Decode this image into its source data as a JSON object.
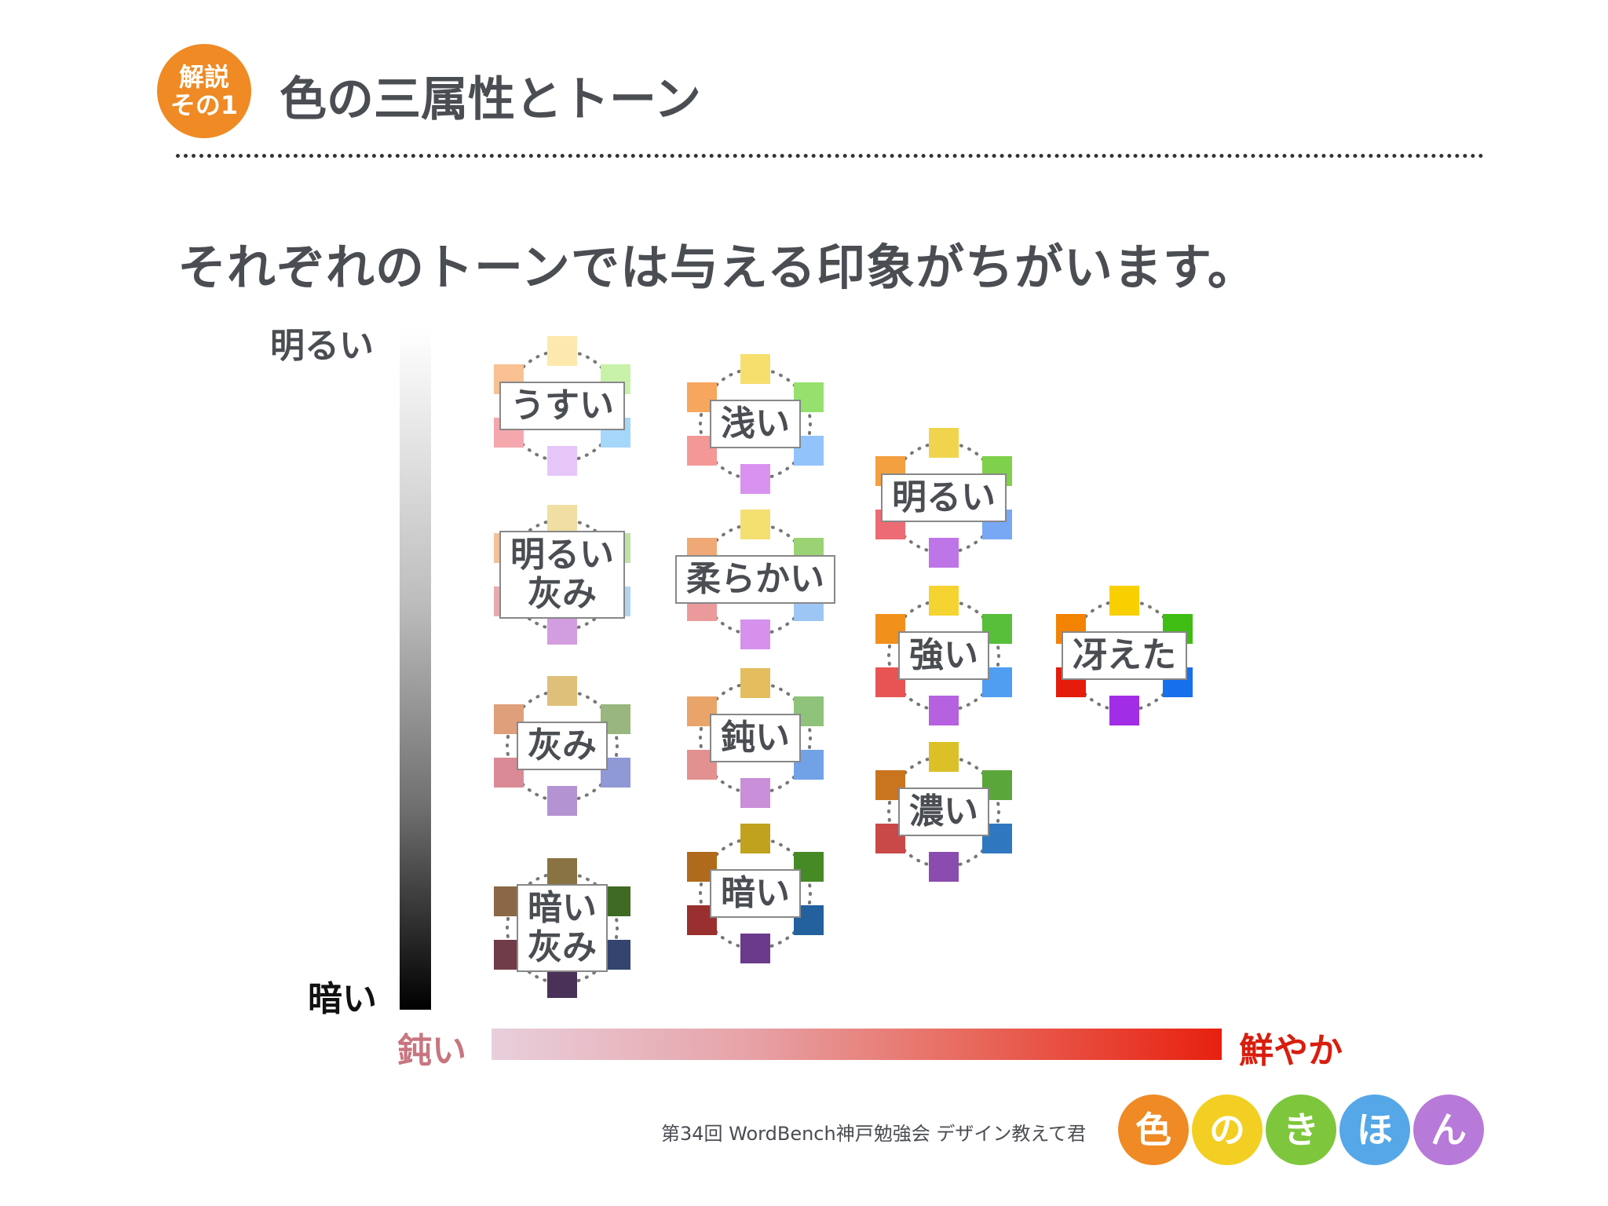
{
  "header": {
    "badge_line1": "解説",
    "badge_line2": "その1",
    "title": "色の三属性とトーン"
  },
  "subtitle": "それぞれのトーンでは与える印象がちがいます。",
  "axis": {
    "top": "明るい",
    "bottom": "暗い",
    "left": "鈍い",
    "right": "鮮やか"
  },
  "tones": [
    {
      "label": "うすい",
      "colors": [
        "#fde9ad",
        "#c8f2a9",
        "#a5d7fb",
        "#e6c6f8",
        "#f5a7ae",
        "#f9c192"
      ]
    },
    {
      "label": "浅い",
      "colors": [
        "#f7df6e",
        "#96e06e",
        "#92c4fb",
        "#d992f0",
        "#f49797",
        "#f7a65e"
      ]
    },
    {
      "label": "明るい",
      "colors": [
        "#f1d44d",
        "#7fd04a",
        "#78a8f4",
        "#be75e8",
        "#ec6b74",
        "#f3a040"
      ]
    },
    {
      "label": "明るい\n灰み",
      "colors": [
        "#f0dea3",
        "#bde4a6",
        "#b3d4f0",
        "#d39ee0",
        "#e7aaae",
        "#f1c199"
      ]
    },
    {
      "label": "柔らかい",
      "colors": [
        "#f3e071",
        "#9bd374",
        "#9ec6f4",
        "#d591ec",
        "#eb9a9c",
        "#efa976"
      ]
    },
    {
      "label": "強い",
      "colors": [
        "#f5d330",
        "#57bf3a",
        "#4f9ef2",
        "#b661e0",
        "#e85454",
        "#f2901c"
      ]
    },
    {
      "label": "冴えた",
      "colors": [
        "#f8d000",
        "#3fbd12",
        "#1670ec",
        "#a22de6",
        "#e51b0c",
        "#f28303"
      ]
    },
    {
      "label": "灰み",
      "colors": [
        "#dfc07a",
        "#98b67e",
        "#8f99d6",
        "#b493d3",
        "#d98a96",
        "#df9f7a"
      ]
    },
    {
      "label": "鈍い",
      "colors": [
        "#e3bd5e",
        "#8fc27a",
        "#72a2e6",
        "#c98fd8",
        "#e39090",
        "#e9a46a"
      ]
    },
    {
      "label": "濃い",
      "colors": [
        "#dbc028",
        "#5ba63b",
        "#2f78c0",
        "#8a4cae",
        "#c94848",
        "#c9741f"
      ]
    },
    {
      "label": "暗い\n灰み",
      "colors": [
        "#8a7343",
        "#3e6a24",
        "#34446f",
        "#4a3158",
        "#703c48",
        "#8b6745"
      ]
    },
    {
      "label": "暗い",
      "colors": [
        "#c0a21e",
        "#468a26",
        "#22609e",
        "#6a3a8c",
        "#9a2f2f",
        "#b06a1c"
      ]
    }
  ],
  "footer": {
    "text": "第34回 WordBench神戸勉強会 デザイン教えて君",
    "kihon": [
      "色",
      "の",
      "き",
      "ほ",
      "ん"
    ],
    "kihon_colors": [
      "#ef8a24",
      "#f2cf22",
      "#7ec63c",
      "#55a7e8",
      "#b77ad8"
    ]
  }
}
